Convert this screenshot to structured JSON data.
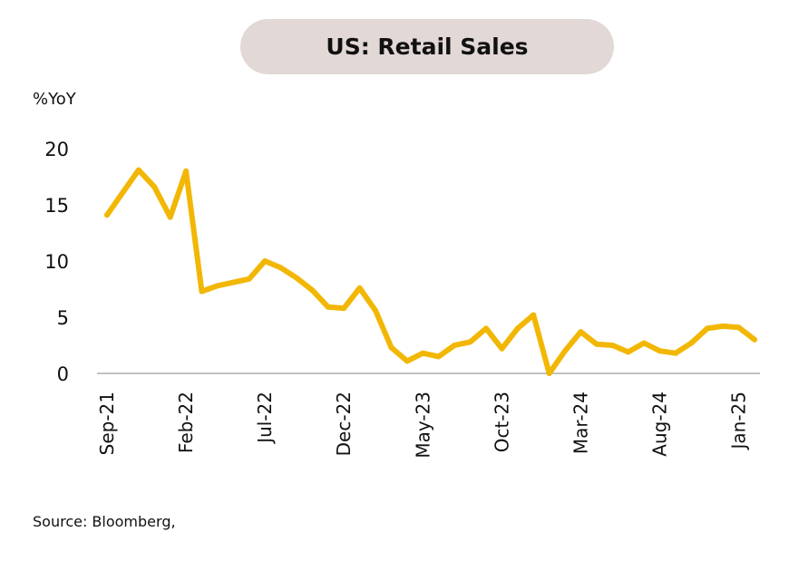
{
  "chart_data": {
    "type": "line",
    "title": "US: Retail Sales",
    "ylabel": "%YoY",
    "xlabel": "",
    "ylim": [
      0,
      20
    ],
    "yticks": [
      0,
      5,
      10,
      15,
      20
    ],
    "grid": false,
    "legend": "none",
    "line_color": "#f2b705",
    "x": [
      "Sep-21",
      "Oct-21",
      "Nov-21",
      "Dec-21",
      "Jan-22",
      "Feb-22",
      "Mar-22",
      "Apr-22",
      "May-22",
      "Jun-22",
      "Jul-22",
      "Aug-22",
      "Sep-22",
      "Oct-22",
      "Nov-22",
      "Dec-22",
      "Jan-23",
      "Feb-23",
      "Mar-23",
      "Apr-23",
      "May-23",
      "Jun-23",
      "Jul-23",
      "Aug-23",
      "Sep-23",
      "Oct-23",
      "Nov-23",
      "Dec-23",
      "Jan-24",
      "Feb-24",
      "Mar-24",
      "Apr-24",
      "May-24",
      "Jun-24",
      "Jul-24",
      "Aug-24",
      "Sep-24",
      "Oct-24",
      "Nov-24",
      "Dec-24",
      "Jan-25",
      "Feb-25"
    ],
    "x_tick_labels": [
      "Sep-21",
      "Feb-22",
      "Jul-22",
      "Dec-22",
      "May-23",
      "Oct-23",
      "Mar-24",
      "Aug-24",
      "Jan-25"
    ],
    "series": [
      {
        "name": "",
        "values": [
          14.1,
          16.1,
          18.1,
          16.6,
          13.9,
          18.0,
          7.3,
          7.8,
          8.1,
          8.4,
          10.0,
          9.4,
          8.5,
          7.4,
          5.9,
          5.8,
          7.6,
          5.6,
          2.3,
          1.1,
          1.8,
          1.5,
          2.5,
          2.8,
          4.0,
          2.2,
          4.0,
          5.2,
          0.0,
          2.0,
          3.7,
          2.6,
          2.5,
          1.9,
          2.7,
          2.0,
          1.8,
          2.7,
          4.0,
          4.2,
          4.1,
          3.0
        ]
      }
    ]
  },
  "source_text": "Source: Bloomberg,"
}
